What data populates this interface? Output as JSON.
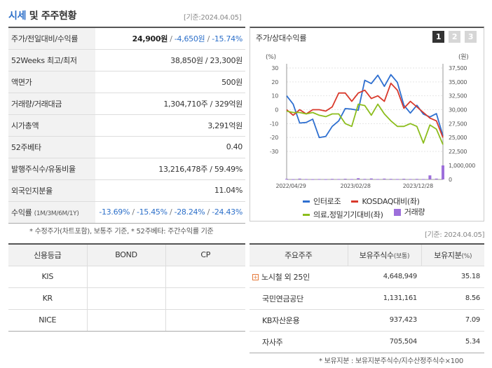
{
  "header": {
    "title_blue": "시세",
    "title_rest": " 및 주주현황",
    "date": "[기준:2024.04.05]"
  },
  "price_table": {
    "rows": [
      {
        "label": "주가/전일대비/수익률"
      },
      {
        "label": "52Weeks 최고/최저",
        "value": "38,850원 / 23,300원"
      },
      {
        "label": "액면가",
        "value": "500원"
      },
      {
        "label": "거래량/거래대금",
        "value": "1,304,710주 / 329억원"
      },
      {
        "label": "시가총액",
        "value": "3,291억원"
      },
      {
        "label": "52주베타",
        "value": "0.40"
      },
      {
        "label": "발행주식수/유동비율",
        "value": "13,216,478주 / 59.49%"
      },
      {
        "label": "외국인지분율",
        "value": "11.04%"
      },
      {
        "label": "수익률",
        "label_small": "(1M/3M/6M/1Y)"
      }
    ],
    "price": "24,900원",
    "change": "-4,650원",
    "change_pct": "-15.74%",
    "returns": [
      "-13.69%",
      "-15.45%",
      "-28.24%",
      "-24.43%"
    ],
    "slash": "/"
  },
  "note_left": "* 수정주가(차트포함), 보통주 기준, * 52주베타: 주간수익률 기준",
  "chart_panel": {
    "title": "주가/상대수익률",
    "tabs": [
      "1",
      "2",
      "3"
    ],
    "unit_left": "(%)",
    "unit_right": "(원)",
    "legend": [
      {
        "name": "인터로조",
        "color": "#2e6fd0",
        "kind": "line"
      },
      {
        "name": "KOSDAQ대비(좌)",
        "color": "#d9392b",
        "kind": "line"
      },
      {
        "name": "의료,정밀기기대비(좌)",
        "color": "#8cbd1d",
        "kind": "line"
      },
      {
        "name": "거래량",
        "color": "#9d6fdb",
        "kind": "bar"
      }
    ]
  },
  "chart_data": {
    "type": "line",
    "x_ticks": [
      "2022/04/29",
      "2023/02/28",
      "2023/12/28"
    ],
    "y_left": {
      "ticks": [
        "30",
        "20",
        "10",
        "0",
        "-10",
        "-20",
        "-30"
      ],
      "range": [
        -30,
        30
      ]
    },
    "y_right": {
      "ticks": [
        "37,500",
        "35,000",
        "32,500",
        "30,000",
        "27,500",
        "25,000",
        "22,500"
      ],
      "range": [
        22500,
        37500
      ]
    },
    "y_volume": {
      "ticks": [
        "1,000,000",
        "0"
      ],
      "range": [
        0,
        1000000
      ]
    },
    "series": [
      {
        "name": "인터로조",
        "axis": "right",
        "color": "#2e6fd0",
        "values": [
          32500,
          31000,
          27600,
          27700,
          28300,
          25000,
          25200,
          27000,
          28000,
          30200,
          30100,
          29900,
          35300,
          34700,
          36200,
          34200,
          36300,
          34900,
          30800,
          29400,
          30800,
          29200,
          28700,
          29300,
          25300
        ]
      },
      {
        "name": "KOSDAQ대비(좌)",
        "axis": "left",
        "color": "#d9392b",
        "values": [
          0,
          -4,
          0,
          -3,
          0,
          0,
          -1,
          2,
          12,
          12,
          6,
          12,
          14,
          8,
          10,
          6,
          19,
          14,
          1,
          6,
          2,
          -2,
          -6,
          -8,
          -20
        ]
      },
      {
        "name": "의료,정밀기기대비(좌)",
        "axis": "left",
        "color": "#8cbd1d",
        "values": [
          -1,
          -2,
          -2,
          -3,
          -2,
          -4,
          -5,
          -3,
          -3,
          -10,
          -12,
          4,
          3,
          -4,
          4,
          -3,
          -8,
          -12,
          -12,
          -10,
          -12,
          -24,
          -11,
          -14,
          -25
        ]
      },
      {
        "name": "거래량",
        "axis": "volume",
        "color": "#9d6fdb",
        "values": [
          40000,
          20000,
          60000,
          30000,
          20000,
          30000,
          20000,
          40000,
          30000,
          50000,
          30000,
          90000,
          40000,
          70000,
          30000,
          60000,
          40000,
          30000,
          50000,
          30000,
          40000,
          30000,
          290000,
          60000,
          1000000
        ]
      }
    ]
  },
  "date_right": "[기준: 2024.04.05]",
  "credit_table": {
    "headers": [
      "신용등급",
      "BOND",
      "CP"
    ],
    "rows": [
      [
        "KIS",
        "",
        ""
      ],
      [
        "KR",
        "",
        ""
      ],
      [
        "NICE",
        "",
        ""
      ]
    ]
  },
  "holder_table": {
    "headers": [
      "주요주주",
      "보유주식수",
      "(보통)",
      "보유지분",
      "(%)"
    ],
    "rows": [
      {
        "name": "노시철 외 25인",
        "shares": "4,648,949",
        "pct": "35.18",
        "expand": "+"
      },
      {
        "name": "국민연금공단",
        "shares": "1,131,161",
        "pct": "8.56"
      },
      {
        "name": "KB자산운용",
        "shares": "937,423",
        "pct": "7.09"
      },
      {
        "name": "자사주",
        "shares": "705,504",
        "pct": "5.34"
      }
    ]
  },
  "note_right": "* 보유지분 : 보유지분주식수/지수산정주식수×100"
}
